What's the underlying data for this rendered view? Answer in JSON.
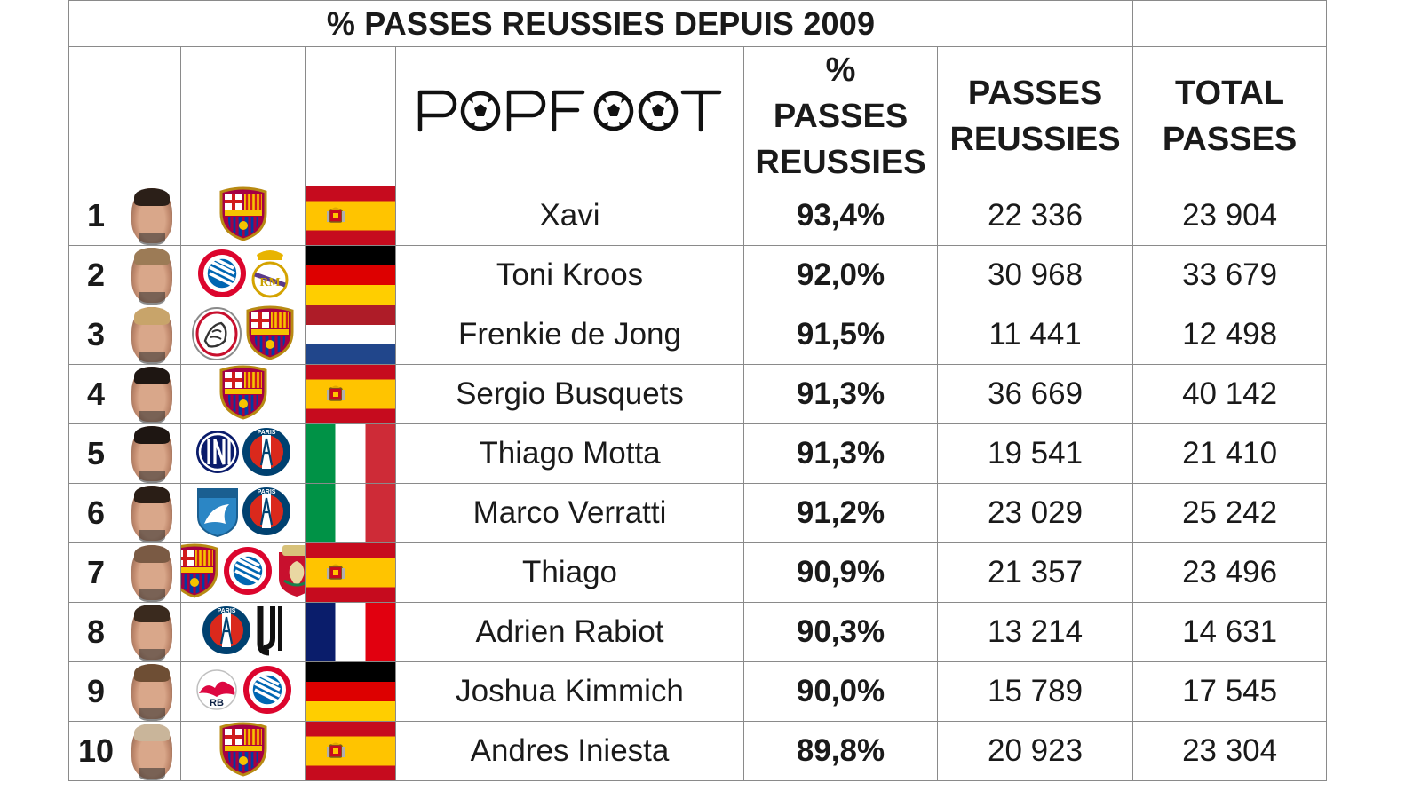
{
  "title": "% PASSES REUSSIES DEPUIS 2009",
  "brand": {
    "logo_text": "POPFOOT"
  },
  "headers": {
    "pct": [
      "%",
      "PASSES",
      "REUSSIES"
    ],
    "completed": [
      "PASSES",
      "REUSSIES"
    ],
    "total": [
      "TOTAL",
      "PASSES"
    ]
  },
  "players": [
    {
      "rank": "1",
      "name": "Xavi",
      "pct": "93,4%",
      "completed": "22 336",
      "total": "23 904",
      "flag": "spain",
      "clubs": [
        "fc-barcelona"
      ],
      "hair": "#2b1f18"
    },
    {
      "rank": "2",
      "name": "Toni Kroos",
      "pct": "92,0%",
      "completed": "30 968",
      "total": "33 679",
      "flag": "germany",
      "clubs": [
        "bayern-munich",
        "real-madrid"
      ],
      "hair": "#9c7b56"
    },
    {
      "rank": "3",
      "name": "Frenkie de Jong",
      "pct": "91,5%",
      "completed": "11 441",
      "total": "12 498",
      "flag": "netherlands",
      "clubs": [
        "ajax",
        "fc-barcelona"
      ],
      "hair": "#c8a46a"
    },
    {
      "rank": "4",
      "name": "Sergio Busquets",
      "pct": "91,3%",
      "completed": "36 669",
      "total": "40 142",
      "flag": "spain",
      "clubs": [
        "fc-barcelona"
      ],
      "hair": "#1e1612"
    },
    {
      "rank": "5",
      "name": "Thiago Motta",
      "pct": "91,3%",
      "completed": "19 541",
      "total": "21 410",
      "flag": "italy",
      "clubs": [
        "inter-milan",
        "paris-saint-germain"
      ],
      "hair": "#1e1612"
    },
    {
      "rank": "6",
      "name": "Marco Verratti",
      "pct": "91,2%",
      "completed": "23 029",
      "total": "25 242",
      "flag": "italy",
      "clubs": [
        "pescara",
        "paris-saint-germain"
      ],
      "hair": "#2a1e16"
    },
    {
      "rank": "7",
      "name": "Thiago",
      "pct": "90,9%",
      "completed": "21 357",
      "total": "23 496",
      "flag": "spain",
      "clubs": [
        "fc-barcelona",
        "bayern-munich",
        "liverpool"
      ],
      "hair": "#7a5a44"
    },
    {
      "rank": "8",
      "name": "Adrien Rabiot",
      "pct": "90,3%",
      "completed": "13 214",
      "total": "14 631",
      "flag": "france",
      "clubs": [
        "paris-saint-germain",
        "juventus"
      ],
      "hair": "#3a2a1e"
    },
    {
      "rank": "9",
      "name": "Joshua Kimmich",
      "pct": "90,0%",
      "completed": "15 789",
      "total": "17 545",
      "flag": "germany",
      "clubs": [
        "rb-leipzig",
        "bayern-munich"
      ],
      "hair": "#6e4e34"
    },
    {
      "rank": "10",
      "name": "Andres Iniesta",
      "pct": "89,8%",
      "completed": "20 923",
      "total": "23 304",
      "flag": "spain",
      "clubs": [
        "fc-barcelona"
      ],
      "hair": "#c9b59a"
    }
  ]
}
